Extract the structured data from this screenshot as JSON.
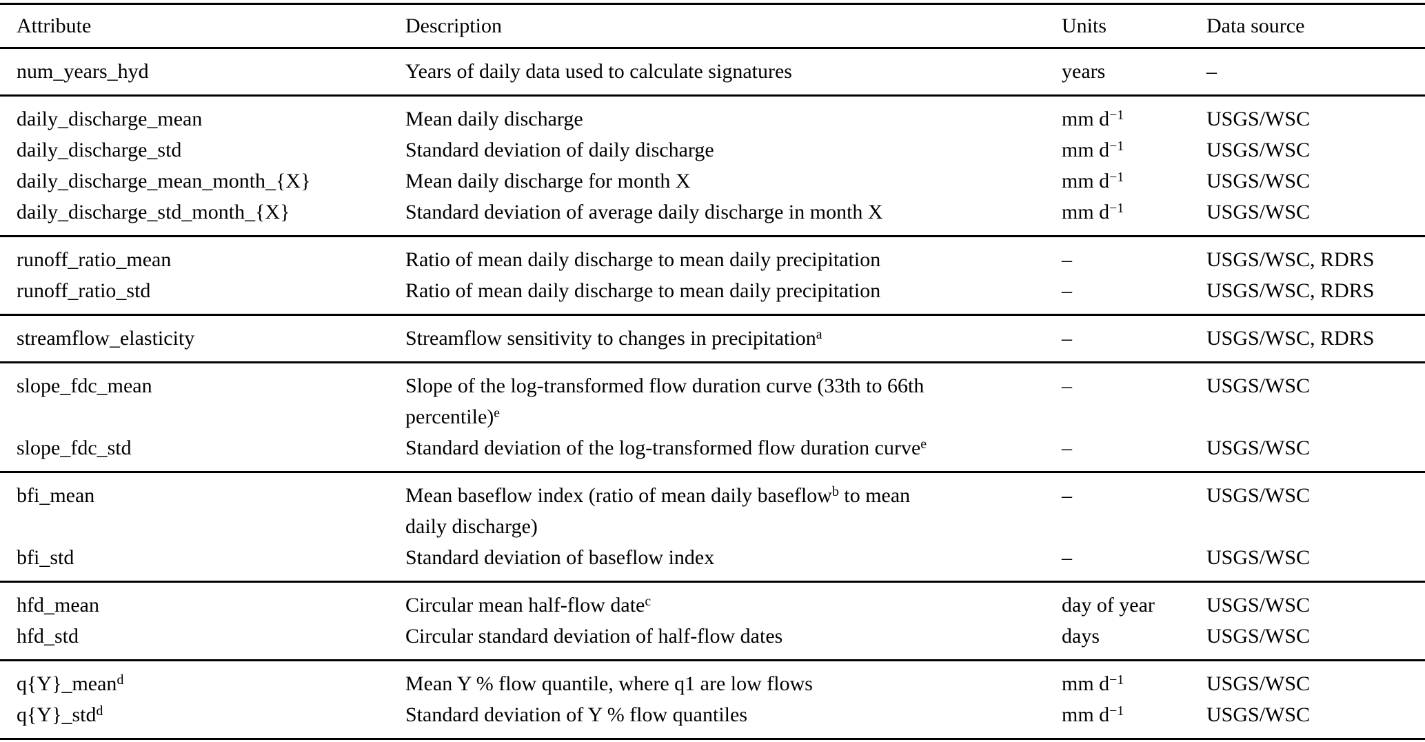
{
  "header": {
    "columns": [
      {
        "label": "Attribute"
      },
      {
        "label": "Description"
      },
      {
        "label": "Units"
      },
      {
        "label": "Data source"
      }
    ]
  },
  "groups": [
    {
      "rows": [
        {
          "attr": [
            {
              "t": "num_years_hyd"
            }
          ],
          "desc": [
            {
              "t": "Years of daily data used to calculate signatures"
            }
          ],
          "units": [
            {
              "t": "years"
            }
          ],
          "src": [
            {
              "t": "–"
            }
          ]
        }
      ]
    },
    {
      "rows": [
        {
          "attr": [
            {
              "t": "daily_discharge_mean"
            }
          ],
          "desc": [
            {
              "t": "Mean daily discharge"
            }
          ],
          "units": [
            {
              "t": "mm d"
            },
            {
              "t": "−1",
              "sup": true
            }
          ],
          "src": [
            {
              "t": "USGS/WSC"
            }
          ]
        },
        {
          "attr": [
            {
              "t": "daily_discharge_std"
            }
          ],
          "desc": [
            {
              "t": "Standard deviation of daily discharge"
            }
          ],
          "units": [
            {
              "t": "mm d"
            },
            {
              "t": "−1",
              "sup": true
            }
          ],
          "src": [
            {
              "t": "USGS/WSC"
            }
          ]
        },
        {
          "attr": [
            {
              "t": "daily_discharge_mean_month_{X}"
            }
          ],
          "desc": [
            {
              "t": "Mean daily discharge for month X"
            }
          ],
          "units": [
            {
              "t": "mm d"
            },
            {
              "t": "−1",
              "sup": true
            }
          ],
          "src": [
            {
              "t": "USGS/WSC"
            }
          ]
        },
        {
          "attr": [
            {
              "t": "daily_discharge_std_month_{X}"
            }
          ],
          "desc": [
            {
              "t": "Standard deviation of average daily discharge in month X"
            }
          ],
          "units": [
            {
              "t": "mm d"
            },
            {
              "t": "−1",
              "sup": true
            }
          ],
          "src": [
            {
              "t": "USGS/WSC"
            }
          ]
        }
      ]
    },
    {
      "rows": [
        {
          "attr": [
            {
              "t": "runoff_ratio_mean"
            }
          ],
          "desc": [
            {
              "t": "Ratio of mean daily discharge to mean daily precipitation"
            }
          ],
          "units": [
            {
              "t": "–"
            }
          ],
          "src": [
            {
              "t": "USGS/WSC, RDRS"
            }
          ]
        },
        {
          "attr": [
            {
              "t": "runoff_ratio_std"
            }
          ],
          "desc": [
            {
              "t": "Ratio of mean daily discharge to mean daily precipitation"
            }
          ],
          "units": [
            {
              "t": "–"
            }
          ],
          "src": [
            {
              "t": "USGS/WSC, RDRS"
            }
          ]
        }
      ]
    },
    {
      "rows": [
        {
          "attr": [
            {
              "t": "streamflow_elasticity"
            }
          ],
          "desc": [
            {
              "t": "Streamflow sensitivity to changes in precipitation"
            },
            {
              "t": "a",
              "sup": true
            }
          ],
          "units": [
            {
              "t": "–"
            }
          ],
          "src": [
            {
              "t": "USGS/WSC, RDRS"
            }
          ]
        }
      ]
    },
    {
      "rows": [
        {
          "attr": [
            {
              "t": "slope_fdc_mean"
            }
          ],
          "desc": [
            {
              "t": "Slope of the log-transformed flow duration curve (33th to 66th"
            },
            {
              "br": true
            },
            {
              "t": "percentile)"
            },
            {
              "t": "e",
              "sup": true
            }
          ],
          "units": [
            {
              "t": "–"
            }
          ],
          "src": [
            {
              "t": "USGS/WSC"
            }
          ]
        },
        {
          "attr": [
            {
              "t": "slope_fdc_std"
            }
          ],
          "desc": [
            {
              "t": "Standard deviation of the log-transformed flow duration curve"
            },
            {
              "t": "e",
              "sup": true
            }
          ],
          "units": [
            {
              "t": "–"
            }
          ],
          "src": [
            {
              "t": "USGS/WSC"
            }
          ]
        }
      ]
    },
    {
      "rows": [
        {
          "attr": [
            {
              "t": "bfi_mean"
            }
          ],
          "desc": [
            {
              "t": "Mean baseflow index (ratio of mean daily baseflow"
            },
            {
              "t": "b",
              "sup": true
            },
            {
              "t": " to mean"
            },
            {
              "br": true
            },
            {
              "t": "daily discharge)"
            }
          ],
          "units": [
            {
              "t": "–"
            }
          ],
          "src": [
            {
              "t": "USGS/WSC"
            }
          ]
        },
        {
          "attr": [
            {
              "t": "bfi_std"
            }
          ],
          "desc": [
            {
              "t": "Standard deviation of baseflow index"
            }
          ],
          "units": [
            {
              "t": "–"
            }
          ],
          "src": [
            {
              "t": "USGS/WSC"
            }
          ]
        }
      ]
    },
    {
      "rows": [
        {
          "attr": [
            {
              "t": "hfd_mean"
            }
          ],
          "desc": [
            {
              "t": "Circular mean half-flow date"
            },
            {
              "t": "c",
              "sup": true
            }
          ],
          "units": [
            {
              "t": "day of year"
            }
          ],
          "src": [
            {
              "t": "USGS/WSC"
            }
          ]
        },
        {
          "attr": [
            {
              "t": "hfd_std"
            }
          ],
          "desc": [
            {
              "t": "Circular standard deviation of half-flow dates"
            }
          ],
          "units": [
            {
              "t": "days"
            }
          ],
          "src": [
            {
              "t": "USGS/WSC"
            }
          ]
        }
      ]
    },
    {
      "rows": [
        {
          "attr": [
            {
              "t": "q{Y}_mean"
            },
            {
              "t": "d",
              "sup": true
            }
          ],
          "desc": [
            {
              "t": "Mean Y % flow quantile, where q1 are low flows"
            }
          ],
          "units": [
            {
              "t": "mm d"
            },
            {
              "t": "−1",
              "sup": true
            }
          ],
          "src": [
            {
              "t": "USGS/WSC"
            }
          ]
        },
        {
          "attr": [
            {
              "t": "q{Y}_std"
            },
            {
              "t": "d",
              "sup": true
            }
          ],
          "desc": [
            {
              "t": "Standard deviation of Y % flow quantiles"
            }
          ],
          "units": [
            {
              "t": "mm d"
            },
            {
              "t": "−1",
              "sup": true
            }
          ],
          "src": [
            {
              "t": "USGS/WSC"
            }
          ]
        }
      ]
    }
  ]
}
